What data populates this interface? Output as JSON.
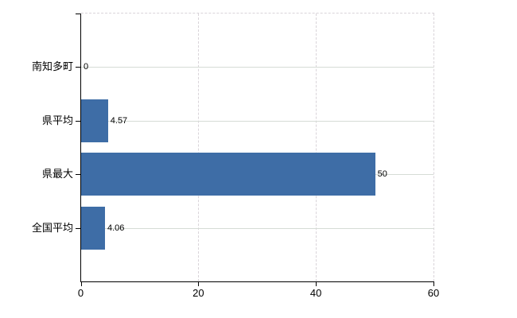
{
  "chart_data": {
    "type": "bar",
    "orientation": "horizontal",
    "title": "",
    "xlabel": "",
    "ylabel": "",
    "categories": [
      "南知多町",
      "県平均",
      "県最大",
      "全国平均"
    ],
    "values": [
      0,
      4.57,
      50,
      4.06
    ],
    "value_labels": [
      "0",
      "4.57",
      "50",
      "4.06"
    ],
    "xticks": [
      0,
      20,
      40,
      60
    ],
    "xtick_labels": [
      "0",
      "20",
      "40",
      "60"
    ],
    "xlim": [
      0,
      60
    ],
    "grid": true,
    "legend": false,
    "colors": {
      "bar": "#3e6da6",
      "grid_horizontal": "#d6dcd6",
      "grid_vertical": "#d9d4d9",
      "axis": "#000000",
      "text": "#000000",
      "background": "#ffffff"
    }
  }
}
